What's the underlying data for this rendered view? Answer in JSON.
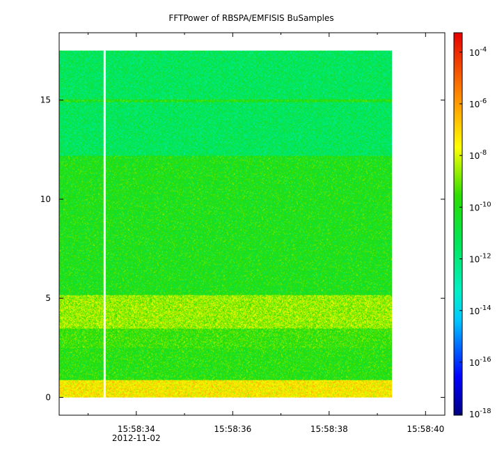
{
  "chart_data": {
    "type": "heatmap",
    "title": "FFTPower of RBSPA/EMFISIS  BuSamples",
    "date_label": "2012-11-02",
    "x": {
      "ticks": [
        "15:58:34",
        "15:58:36",
        "15:58:38",
        "15:58:40"
      ],
      "range_seconds": [
        32.4,
        40.4
      ],
      "tick_seconds": [
        34,
        36,
        38,
        40
      ],
      "minor_tick_seconds": [
        33,
        35,
        37,
        39
      ],
      "data_span_seconds": [
        32.4,
        39.3
      ],
      "gap_seconds": 33.35
    },
    "y": {
      "ticks": [
        "0",
        "5",
        "10",
        "15"
      ],
      "tick_values": [
        0,
        5,
        10,
        15
      ],
      "range": [
        -0.9,
        18.4
      ],
      "data_range": [
        0,
        17.5
      ]
    },
    "colorbar": {
      "scale": "log",
      "ticks": [
        "-4",
        "-6",
        "-8",
        "-10",
        "-12",
        "-14",
        "-16",
        "-18"
      ],
      "tick_exponents": [
        -4,
        -6,
        -8,
        -10,
        -12,
        -14,
        -16,
        -18
      ],
      "range_exponents": [
        -18.05,
        -3.25
      ]
    },
    "bands": [
      {
        "from": 0,
        "to": 0.9,
        "log_power": -7.4
      },
      {
        "from": 0.9,
        "to": 2.5,
        "log_power": -9.9
      },
      {
        "from": 2.5,
        "to": 3.5,
        "log_power": -9.6
      },
      {
        "from": 3.5,
        "to": 5.2,
        "log_power": -8.6
      },
      {
        "from": 5.2,
        "to": 12.2,
        "log_power": -10.1
      },
      {
        "from": 12.2,
        "to": 17.5,
        "log_power": -11.4
      }
    ],
    "lines": [
      {
        "y": 15.0,
        "log_power": -10.0
      }
    ]
  }
}
